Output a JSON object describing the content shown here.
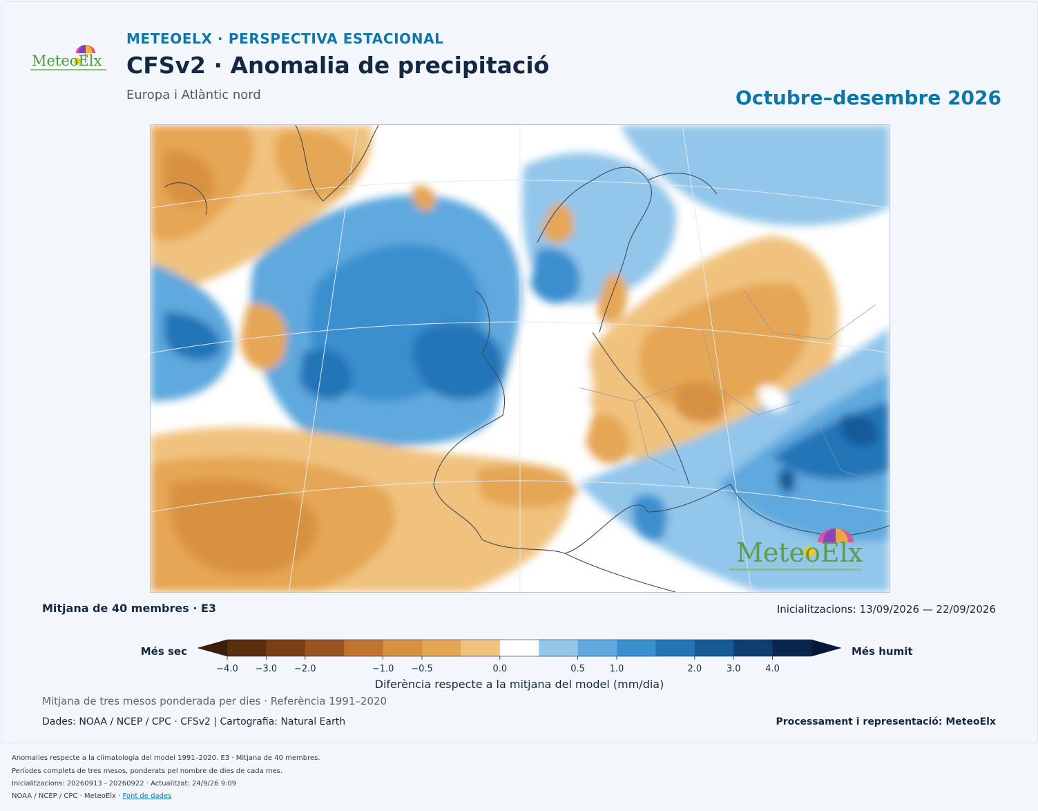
{
  "header": {
    "kicker": "METEOELX · PERSPECTIVA ESTACIONAL",
    "title": "CFSv2 · Anomalia de precipitació",
    "subtitle": "Europa i Atlàntic nord",
    "period": "Octubre–desembre 2026",
    "logo_text": "MeteoElx"
  },
  "map": {
    "watermark_text": "MeteoElx",
    "colors": {
      "dry": [
        "#5b2e0d",
        "#7c3e14",
        "#9b541f",
        "#bf7430",
        "#d8913f",
        "#e5a654",
        "#f0c27e"
      ],
      "neutral": "#ffffff",
      "wet": [
        "#92c6ea",
        "#5fa9de",
        "#3a8fcf",
        "#2474b7",
        "#165a98",
        "#0e3f73",
        "#08254f"
      ]
    }
  },
  "meta": {
    "ensemble": "Mitjana de 40 membres · E3",
    "inits": "Inicialitzacions: 13/09/2026 — 22/09/2026"
  },
  "colorbar": {
    "left_label": "Més sec",
    "right_label": "Més humit",
    "ticks": [
      "−4.0",
      "−3.0",
      "−2.0",
      "−1.0",
      "−0.5",
      "0.0",
      "0.5",
      "1.0",
      "2.0",
      "3.0",
      "4.0"
    ],
    "axis_label": "Diferència respecte a la mitjana del model (mm/dia)"
  },
  "notes": {
    "weighting": "Mitjana de tres mesos ponderada per dies · Referència 1991–2020",
    "source": "Dades: NOAA / NCEP / CPC · CFSv2 | Cartografia: Natural Earth",
    "credit": "Processament i representació: MeteoElx"
  },
  "footer": {
    "line1": "Anomalies respecte a la climatologia del model 1991–2020. E3 · Mitjana de 40 membres.",
    "line2": "Períodes complets de tres mesos, ponderats pel nombre de dies de cada mes.",
    "line3": "Inicialitzacions: 20260913 - 20260922 · Actualitzat: 24/9/26 9:09",
    "line4_prefix": "NOAA / NCEP / CPC · MeteoElx · ",
    "link": "Font de dades"
  }
}
